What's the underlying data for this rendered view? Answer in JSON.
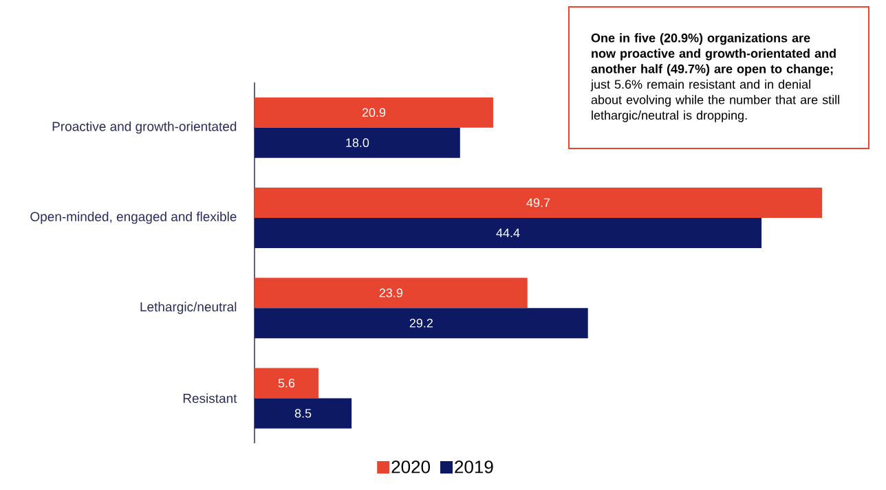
{
  "chart_data": {
    "type": "bar",
    "orientation": "horizontal",
    "categories": [
      "Proactive and growth-orientated",
      "Open-minded, engaged and flexible",
      "Lethargic/neutral",
      "Resistant"
    ],
    "series": [
      {
        "name": "2020",
        "color": "#e84530",
        "values": [
          20.9,
          49.7,
          23.9,
          5.6
        ],
        "value_labels": [
          "20.9",
          "49.7",
          "23.9",
          "5.6"
        ]
      },
      {
        "name": "2019",
        "color": "#0d1a63",
        "values": [
          18.0,
          44.4,
          29.2,
          8.5
        ],
        "value_labels": [
          "18.0",
          "44.4",
          "29.2",
          "8.5"
        ]
      }
    ],
    "legend": "bottom",
    "annotations": [
      "**One in five (20.9%) organizations are now proactive and growth-orientated and another half (49.7%) are open to change;** just 5.6% remain resistant and in denial about evolving while the number that are still lethargic/neutral is dropping."
    ]
  }
}
